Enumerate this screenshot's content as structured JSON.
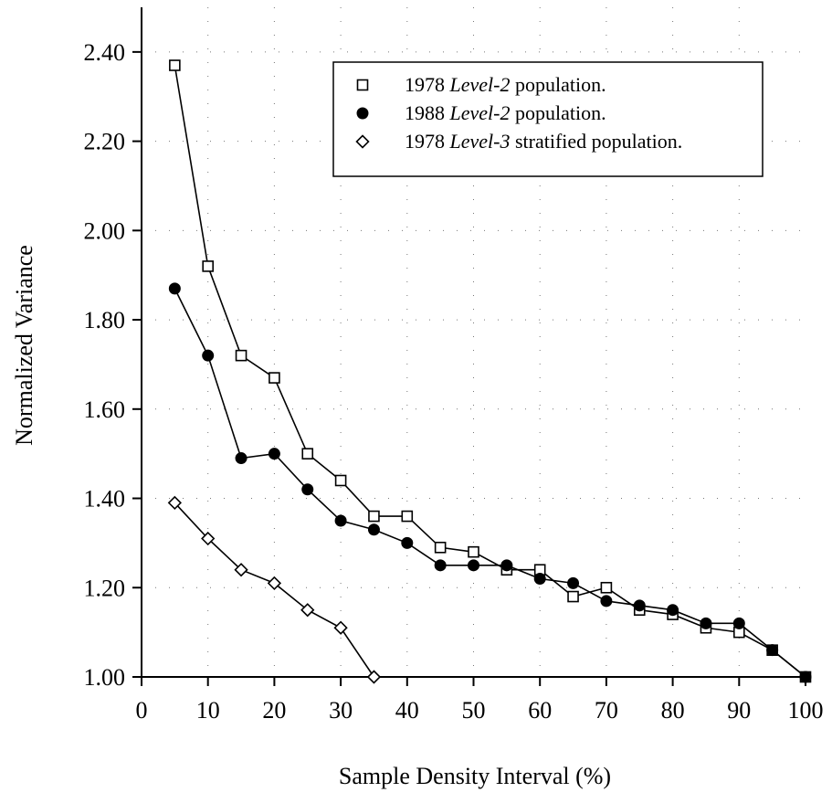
{
  "chart_data": {
    "type": "line",
    "title": "",
    "xlabel": "Sample Density Interval (%)",
    "ylabel": "Normalized Variance",
    "xlim": [
      0,
      100
    ],
    "ylim": [
      1.0,
      2.5
    ],
    "x_ticks": [
      0,
      10,
      20,
      30,
      40,
      50,
      60,
      70,
      80,
      90,
      100
    ],
    "y_ticks": [
      1.0,
      1.2,
      1.4,
      1.6,
      1.8,
      2.0,
      2.2,
      2.4
    ],
    "x_tick_labels": [
      "0",
      "10",
      "20",
      "30",
      "40",
      "50",
      "60",
      "70",
      "80",
      "90",
      "100"
    ],
    "y_tick_labels": [
      "1.00",
      "1.20",
      "1.40",
      "1.60",
      "1.80",
      "2.00",
      "2.20",
      "2.40"
    ],
    "grid": "dotted",
    "legend_position": "top-right",
    "series": [
      {
        "name_parts": [
          "1978 ",
          "Level-2",
          " population."
        ],
        "marker": "open-square",
        "color": "#000000",
        "x": [
          5,
          10,
          15,
          20,
          25,
          30,
          35,
          40,
          45,
          50,
          55,
          60,
          65,
          70,
          75,
          80,
          85,
          90,
          95,
          100
        ],
        "y": [
          2.37,
          1.92,
          1.72,
          1.67,
          1.5,
          1.44,
          1.36,
          1.36,
          1.29,
          1.28,
          1.24,
          1.24,
          1.18,
          1.2,
          1.15,
          1.14,
          1.11,
          1.1,
          1.06,
          1.0
        ]
      },
      {
        "name_parts": [
          "1988 ",
          "Level-2",
          " population."
        ],
        "marker": "filled-circle",
        "color": "#000000",
        "x": [
          5,
          10,
          15,
          20,
          25,
          30,
          35,
          40,
          45,
          50,
          55,
          60,
          65,
          70,
          75,
          80,
          85,
          90,
          95,
          100
        ],
        "y": [
          1.87,
          1.72,
          1.49,
          1.5,
          1.42,
          1.35,
          1.33,
          1.3,
          1.25,
          1.25,
          1.25,
          1.22,
          1.21,
          1.17,
          1.16,
          1.15,
          1.12,
          1.12,
          1.06,
          1.0
        ]
      },
      {
        "name_parts": [
          "1978 ",
          "Level-3",
          " stratified population."
        ],
        "marker": "open-diamond",
        "color": "#000000",
        "x": [
          5,
          10,
          15,
          20,
          25,
          30,
          35
        ],
        "y": [
          1.39,
          1.31,
          1.24,
          1.21,
          1.15,
          1.11,
          1.0
        ]
      }
    ]
  }
}
